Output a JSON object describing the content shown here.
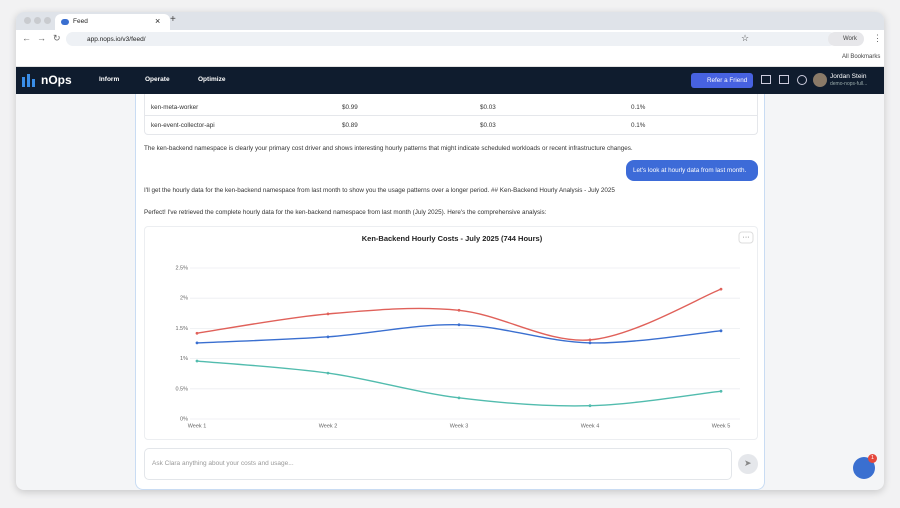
{
  "browser": {
    "tab_title": "Feed",
    "url": "app.nops.io/v3/feed/",
    "profile": "Work",
    "bookmarks": "All Bookmarks"
  },
  "nav": {
    "logo": "nOps",
    "items": [
      "Inform",
      "Operate",
      "Optimize"
    ],
    "refer": "Refer a Friend",
    "user_name": "Jordan Stein",
    "user_org": "demo-nops-full..."
  },
  "table": {
    "rows": [
      [
        "ken-meta-worker",
        "$0.99",
        "$0.03",
        "0.1%"
      ],
      [
        "ken-event-collector-api",
        "$0.89",
        "$0.03",
        "0.1%"
      ]
    ]
  },
  "messages": [
    "The ken-backend namespace is clearly your primary cost driver and shows interesting hourly patterns that might indicate scheduled workloads or recent infrastructure changes.",
    "Let's look at hourly data from last month.",
    "I'll get the hourly data for the ken-backend namespace from last month to show you the usage patterns over a longer period. ## Ken-Backend Hourly Analysis - July 2025",
    "Perfect! I've retrieved the complete hourly data for the ken-backend namespace from last month (July 2025). Here's the comprehensive analysis:"
  ],
  "chart_data": {
    "type": "line",
    "title": "Ken-Backend Hourly Costs - July 2025 (744 Hours)",
    "categories": [
      "Week 1",
      "Week 2",
      "Week 3",
      "Week 4",
      "Week 5"
    ],
    "series": [
      {
        "color": "#e0615a",
        "values": [
          1.42,
          1.74,
          1.8,
          1.31,
          2.15
        ]
      },
      {
        "color": "#3a6fd0",
        "values": [
          1.26,
          1.36,
          1.56,
          1.26,
          1.46
        ]
      },
      {
        "color": "#52bcae",
        "values": [
          0.96,
          0.76,
          0.35,
          0.22,
          0.46
        ]
      }
    ],
    "ylim": [
      0,
      2.5
    ],
    "yticks": [
      {
        "value": 0,
        "label": "0%"
      },
      {
        "value": 0.5,
        "label": "0.5%"
      },
      {
        "value": 1,
        "label": "1%"
      },
      {
        "value": 1.5,
        "label": "1.5%"
      },
      {
        "value": 2,
        "label": "2%"
      },
      {
        "value": 2.5,
        "label": "2.5%"
      }
    ],
    "grid": true
  },
  "input": {
    "placeholder": "Ask Clara anything about your costs and usage..."
  },
  "badge": "1"
}
